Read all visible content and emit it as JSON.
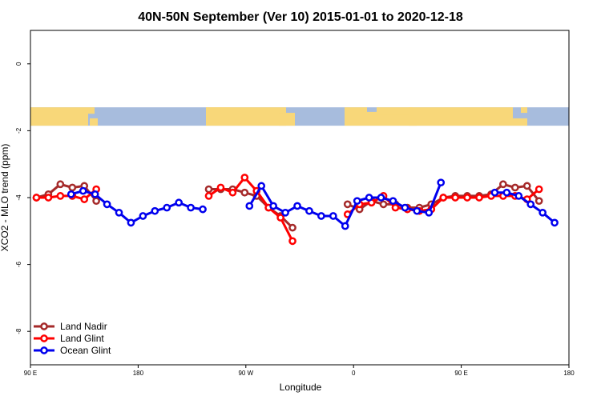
{
  "chart_data": {
    "type": "line",
    "title": "40N-50N September (Ver 10)   2015-01-01 to 2020-12-18",
    "xlabel": "Longitude",
    "ylabel": "XCO2 - MLO trend (ppm)",
    "xlim": [
      90,
      540
    ],
    "ylim": [
      -9,
      1
    ],
    "x_ticks": [
      {
        "value": 90,
        "label": "90 E"
      },
      {
        "value": 180,
        "label": "180"
      },
      {
        "value": 270,
        "label": "90 W"
      },
      {
        "value": 360,
        "label": "0"
      },
      {
        "value": 450,
        "label": "90 E"
      },
      {
        "value": 540,
        "label": "180"
      }
    ],
    "y_ticks": [
      {
        "value": 0,
        "label": "0"
      },
      {
        "value": -2,
        "label": "-2"
      },
      {
        "value": -4,
        "label": "-4"
      },
      {
        "value": -6,
        "label": "-6"
      },
      {
        "value": -8,
        "label": "-8"
      }
    ],
    "map_strip": {
      "y_top": -1.3,
      "y_bottom": -1.85,
      "ocean_color": "#a7bcdd",
      "land_color": "#f8d779"
    },
    "legend_position": "bottom-left",
    "series": [
      {
        "name": "Land Nadir",
        "color": "#a52a2a",
        "segments": [
          [
            [
              95,
              -4.0
            ],
            [
              105,
              -3.9
            ],
            [
              115,
              -3.6
            ],
            [
              125,
              -3.7
            ],
            [
              135,
              -3.65
            ],
            [
              145,
              -4.1
            ]
          ],
          [
            [
              239,
              -3.75
            ],
            [
              249,
              -3.75
            ],
            [
              259,
              -3.75
            ],
            [
              269,
              -3.85
            ],
            [
              279,
              -3.95
            ],
            [
              289,
              -4.3
            ],
            [
              299,
              -4.55
            ],
            [
              309,
              -4.9
            ]
          ],
          [
            [
              355,
              -4.2
            ],
            [
              365,
              -4.35
            ],
            [
              375,
              -4.1
            ],
            [
              385,
              -4.2
            ],
            [
              395,
              -4.2
            ],
            [
              405,
              -4.3
            ],
            [
              415,
              -4.3
            ],
            [
              425,
              -4.2
            ],
            [
              435,
              -4.0
            ],
            [
              445,
              -3.95
            ],
            [
              455,
              -3.95
            ],
            [
              465,
              -3.95
            ],
            [
              475,
              -3.9
            ],
            [
              485,
              -3.6
            ],
            [
              495,
              -3.7
            ],
            [
              505,
              -3.65
            ],
            [
              515,
              -4.1
            ]
          ]
        ]
      },
      {
        "name": "Land Glint",
        "color": "#ff0000",
        "segments": [
          [
            [
              95,
              -4.0
            ],
            [
              105,
              -4.0
            ],
            [
              115,
              -3.95
            ],
            [
              125,
              -3.95
            ],
            [
              135,
              -4.05
            ],
            [
              145,
              -3.75
            ]
          ],
          [
            [
              239,
              -3.95
            ],
            [
              249,
              -3.7
            ],
            [
              259,
              -3.85
            ],
            [
              269,
              -3.4
            ],
            [
              279,
              -3.8
            ],
            [
              289,
              -4.3
            ],
            [
              299,
              -4.6
            ],
            [
              309,
              -5.3
            ]
          ],
          [
            [
              355,
              -4.5
            ],
            [
              365,
              -4.2
            ],
            [
              375,
              -4.15
            ],
            [
              385,
              -3.95
            ],
            [
              395,
              -4.3
            ],
            [
              405,
              -4.35
            ],
            [
              415,
              -4.4
            ],
            [
              425,
              -4.35
            ],
            [
              435,
              -4.0
            ],
            [
              445,
              -4.0
            ],
            [
              455,
              -4.0
            ],
            [
              465,
              -4.0
            ],
            [
              475,
              -3.95
            ],
            [
              485,
              -3.95
            ],
            [
              495,
              -3.95
            ],
            [
              505,
              -4.05
            ],
            [
              515,
              -3.75
            ]
          ]
        ]
      },
      {
        "name": "Ocean Glint",
        "color": "#0000ee",
        "segments": [
          [
            [
              124,
              -3.9
            ],
            [
              134,
              -3.8
            ],
            [
              144,
              -3.9
            ],
            [
              154,
              -4.2
            ],
            [
              164,
              -4.45
            ],
            [
              174,
              -4.75
            ],
            [
              184,
              -4.55
            ],
            [
              194,
              -4.4
            ],
            [
              204,
              -4.3
            ],
            [
              214,
              -4.15
            ],
            [
              224,
              -4.3
            ],
            [
              234,
              -4.35
            ]
          ],
          [
            [
              273,
              -4.25
            ],
            [
              283,
              -3.65
            ],
            [
              293,
              -4.25
            ],
            [
              303,
              -4.45
            ],
            [
              313,
              -4.25
            ],
            [
              323,
              -4.4
            ],
            [
              333,
              -4.55
            ],
            [
              343,
              -4.55
            ],
            [
              353,
              -4.85
            ],
            [
              363,
              -4.1
            ],
            [
              373,
              -4.0
            ],
            [
              383,
              -4.0
            ],
            [
              393,
              -4.1
            ],
            [
              403,
              -4.3
            ],
            [
              413,
              -4.4
            ],
            [
              423,
              -4.45
            ],
            [
              433,
              -3.55
            ]
          ],
          [
            [
              478,
              -3.85
            ],
            [
              488,
              -3.85
            ],
            [
              498,
              -3.95
            ],
            [
              508,
              -4.2
            ],
            [
              518,
              -4.45
            ],
            [
              528,
              -4.75
            ]
          ]
        ]
      }
    ]
  }
}
